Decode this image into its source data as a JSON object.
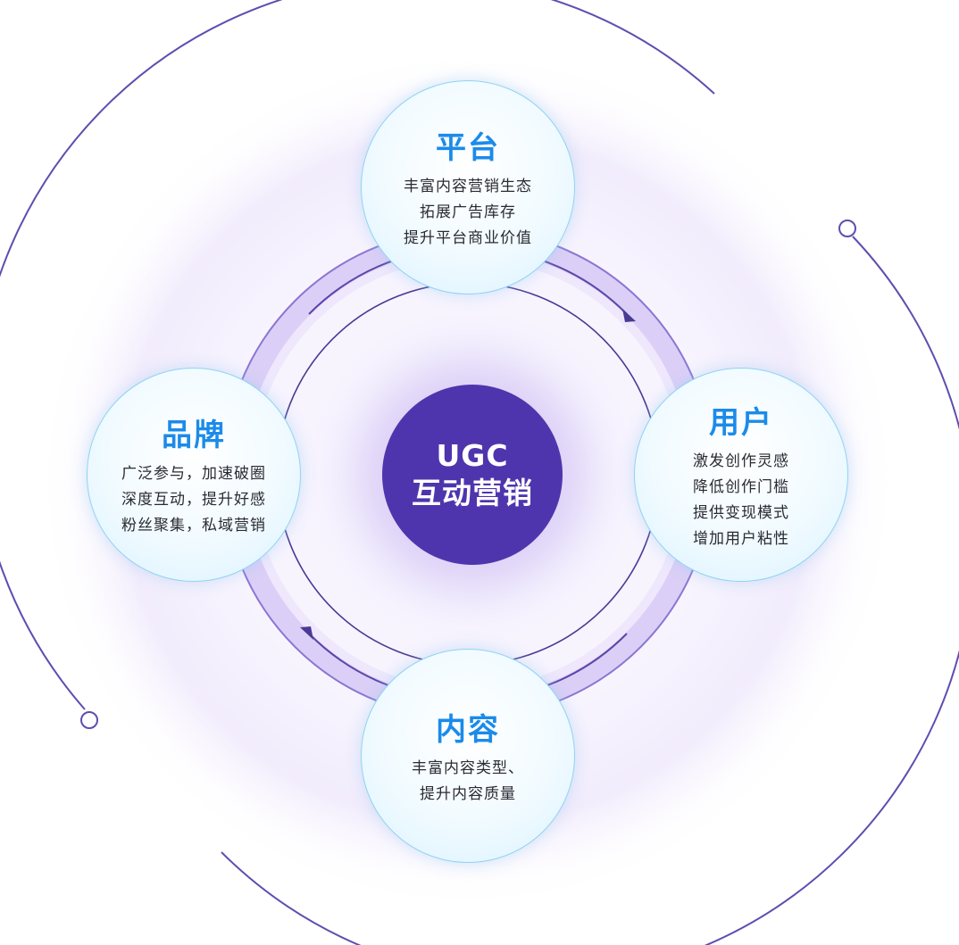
{
  "center": {
    "line1": "UGC",
    "line2": "互动营销"
  },
  "nodes": {
    "top": {
      "title": "平台",
      "lines": [
        "丰富内容营销生态",
        "拓展广告库存",
        "提升平台商业价值"
      ]
    },
    "left": {
      "title": "品牌",
      "lines": [
        "广泛参与，加速破圈",
        "深度互动，提升好感",
        "粉丝聚集，私域营销"
      ]
    },
    "right": {
      "title": "用户",
      "lines": [
        "激发创作灵感",
        "降低创作门槛",
        "提供变现模式",
        "增加用户粘性"
      ]
    },
    "bottom": {
      "title": "内容",
      "lines": [
        "丰富内容类型、",
        "提升内容质量"
      ]
    }
  },
  "colors": {
    "center_fill": "#4f35ad",
    "title_blue": "#1b8bea",
    "ring_purple": "#5a46a8",
    "ring_band": "#d9cdf6",
    "node_border": "#8fd3f2"
  },
  "icons": {
    "flow_arrows": "clockwise-arrow-icon",
    "orbit_dots": "circle-dot-icon"
  }
}
